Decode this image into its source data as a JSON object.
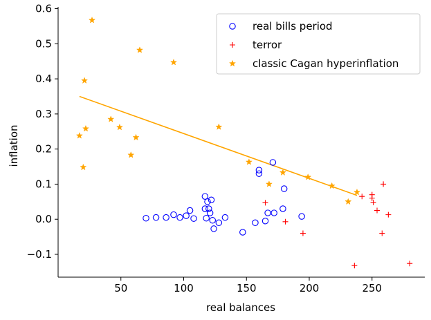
{
  "chart_data": {
    "type": "scatter",
    "title": "",
    "xlabel": "real balances",
    "ylabel": "inflation",
    "xlim": [
      0,
      292
    ],
    "ylim": [
      -0.165,
      0.605
    ],
    "xticks": [
      50,
      100,
      150,
      200,
      250
    ],
    "yticks": [
      -0.1,
      0.0,
      0.1,
      0.2,
      0.3,
      0.4,
      0.5,
      0.6
    ],
    "xtick_labels": [
      "50",
      "100",
      "150",
      "200",
      "250"
    ],
    "ytick_labels": [
      "−0.1",
      "0.0",
      "0.1",
      "0.2",
      "0.3",
      "0.4",
      "0.5",
      "0.6"
    ],
    "grid": false,
    "legend_position": "top-right",
    "series": [
      {
        "name": "real bills period",
        "marker": "open-circle",
        "color": "#0000ff",
        "x": [
          70,
          78,
          86,
          92,
          97,
          102,
          105,
          108,
          117,
          117,
          118,
          119,
          120,
          121,
          122,
          123,
          124,
          128,
          133,
          147,
          157,
          160,
          160,
          165,
          167,
          171,
          172,
          179,
          180,
          194
        ],
        "y": [
          0.003,
          0.005,
          0.005,
          0.013,
          0.005,
          0.01,
          0.025,
          0.002,
          0.065,
          0.03,
          0.003,
          0.05,
          0.03,
          0.018,
          0.055,
          -0.003,
          -0.027,
          -0.01,
          0.005,
          -0.037,
          -0.01,
          0.14,
          0.13,
          -0.005,
          0.018,
          0.162,
          0.018,
          0.03,
          0.087,
          0.008
        ]
      },
      {
        "name": "terror",
        "marker": "plus",
        "color": "#ff0000",
        "x": [
          165,
          181,
          195,
          236,
          242,
          250,
          250,
          251,
          254,
          258,
          259,
          263,
          280
        ],
        "y": [
          0.047,
          -0.007,
          -0.04,
          -0.132,
          0.065,
          0.07,
          0.06,
          0.048,
          0.025,
          -0.04,
          0.1,
          0.013,
          -0.126
        ]
      },
      {
        "name": "classic Cagan hyperinflation",
        "marker": "star",
        "color": "#ffa500",
        "x": [
          17,
          20,
          21,
          22,
          27,
          42,
          49,
          58,
          62,
          65,
          92,
          128,
          152,
          168,
          179,
          199,
          218,
          231,
          238
        ],
        "y": [
          0.238,
          0.148,
          0.395,
          0.258,
          0.567,
          0.285,
          0.262,
          0.183,
          0.233,
          0.482,
          0.447,
          0.263,
          0.163,
          0.1,
          0.133,
          0.12,
          0.095,
          0.05,
          0.077
        ]
      }
    ],
    "fit_line": {
      "color": "#ffa500",
      "x": [
        17,
        238
      ],
      "y": [
        0.35,
        0.068
      ]
    }
  }
}
